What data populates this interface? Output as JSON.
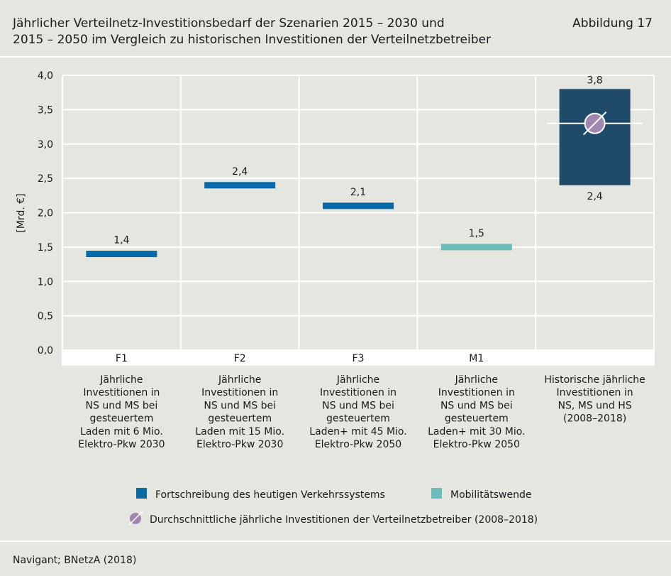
{
  "header": {
    "title_line1": "Jährlicher Verteilnetz-Investitionsbedarf der Szenarien 2015 – 2030 und",
    "title_line2": "2015 – 2050 im Vergleich zu historischen Investitionen der Verteilnetzbetreiber",
    "figure_label": "Abbildung 17"
  },
  "chart_data": {
    "type": "bar",
    "ylabel": "[Mrd. €]",
    "ylim": [
      0,
      4
    ],
    "yticks": [
      "0,0",
      "0,5",
      "1,0",
      "1,5",
      "2,0",
      "2,5",
      "3,0",
      "3,5",
      "4,0"
    ],
    "grid": true,
    "categories": [
      {
        "code": "F1",
        "desc": [
          "Jährliche",
          "Investitionen in",
          "NS und MS bei",
          "gesteuertem",
          "Laden mit 6 Mio.",
          "Elektro-Pkw 2030"
        ]
      },
      {
        "code": "F2",
        "desc": [
          "Jährliche",
          "Investitionen in",
          "NS und MS bei",
          "gesteuertem",
          "Laden mit 15 Mio.",
          "Elektro-Pkw 2030"
        ]
      },
      {
        "code": "F3",
        "desc": [
          "Jährliche",
          "Investitionen in",
          "NS und MS bei",
          "gesteuertem",
          "Laden+ mit 45 Mio.",
          "Elektro-Pkw 2050"
        ]
      },
      {
        "code": "M1",
        "desc": [
          "Jährliche",
          "Investitionen in",
          "NS und MS bei",
          "gesteuertem",
          "Laden+ mit 30 Mio.",
          "Elektro-Pkw 2050"
        ]
      },
      {
        "code": "",
        "desc": [
          "Historische jährliche",
          "Investitionen in",
          "NS, MS und HS",
          "(2008–2018)"
        ]
      }
    ],
    "points": [
      {
        "category": 0,
        "value": 1.4,
        "label": "1,4",
        "series": "Fortschreibung des heutigen Verkehrssystems"
      },
      {
        "category": 1,
        "value": 2.4,
        "label": "2,4",
        "series": "Fortschreibung des heutigen Verkehrssystems"
      },
      {
        "category": 2,
        "value": 2.1,
        "label": "2,1",
        "series": "Fortschreibung des heutigen Verkehrssystems"
      },
      {
        "category": 3,
        "value": 1.5,
        "label": "1,5",
        "series": "Mobilitätswende"
      }
    ],
    "historical_range": {
      "category": 4,
      "low": 2.4,
      "high": 3.8,
      "low_label": "2,4",
      "high_label": "3,8",
      "average": 3.3
    },
    "legend": [
      {
        "name": "Fortschreibung des heutigen Verkehrssystems",
        "color": "#0a6aa8"
      },
      {
        "name": "Mobilitätswende",
        "color": "#6ebcb9"
      },
      {
        "name": "Durchschnittliche jährliche Investitionen der Verteilnetzbetreiber (2008–2018)",
        "color": "#9f87b1"
      }
    ],
    "colors": {
      "range_box": "#1f4a69",
      "average_marker": "#9f87b1"
    }
  },
  "footer": {
    "source": "Navigant; BNetzA (2018)"
  }
}
